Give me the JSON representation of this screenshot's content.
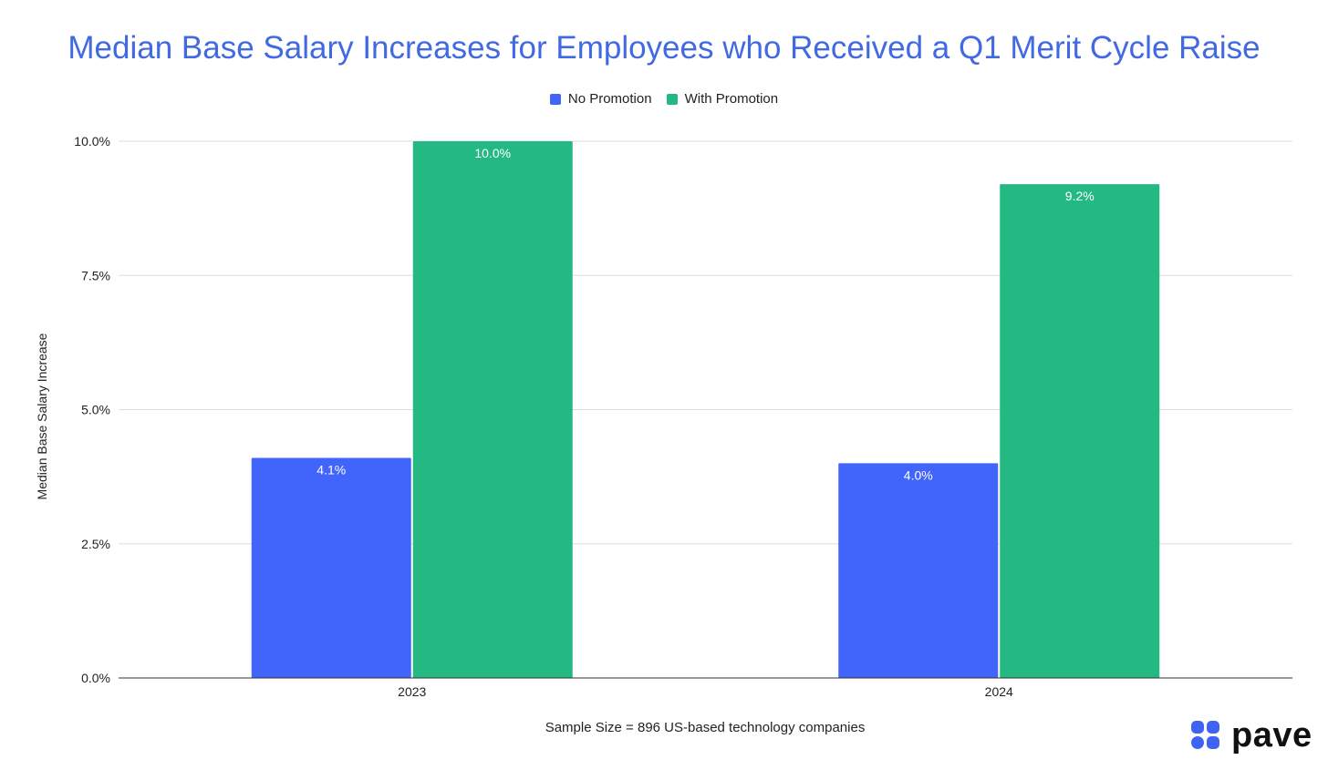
{
  "chart_data": {
    "type": "bar",
    "title": "Median Base Salary Increases for Employees who Received a Q1 Merit Cycle Raise",
    "categories": [
      "2023",
      "2024"
    ],
    "series": [
      {
        "name": "No Promotion",
        "values": [
          4.1,
          4.0
        ],
        "labels": [
          "4.1%",
          "4.0%"
        ],
        "color": "#4164fb"
      },
      {
        "name": "With Promotion",
        "values": [
          10.0,
          9.2
        ],
        "labels": [
          "10.0%",
          "9.2%"
        ],
        "color": "#24b882"
      }
    ],
    "ylabel": "Median Base Salary Increase",
    "xlabel": "",
    "ylim": [
      0,
      10
    ],
    "yticks": [
      0,
      2.5,
      5,
      7.5,
      10
    ],
    "ytick_labels": [
      "0.0%",
      "2.5%",
      "5.0%",
      "7.5%",
      "10.0%"
    ],
    "grid": true,
    "legend_position": "top-center",
    "footnote": "Sample Size = 896 US-based technology companies"
  },
  "colors": {
    "title": "#4169e1",
    "no_promotion": "#4164fb",
    "with_promotion": "#24b882",
    "gridline": "#dddddd",
    "axis": "#333333"
  },
  "logo": {
    "text": "pave",
    "icon": "pave-logo-icon"
  }
}
